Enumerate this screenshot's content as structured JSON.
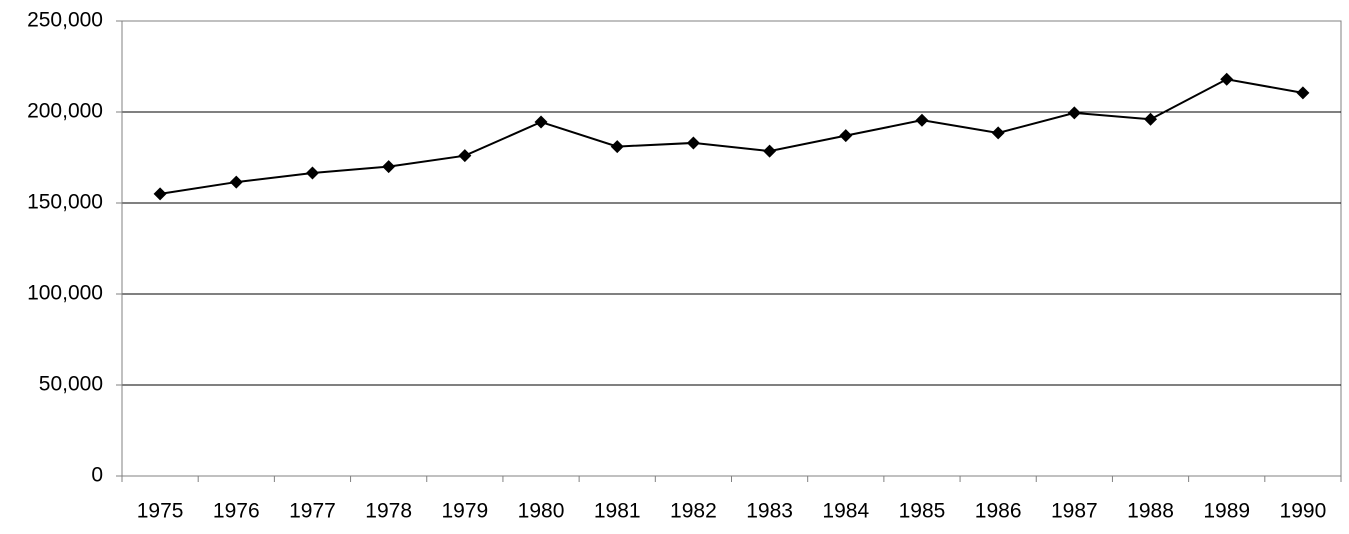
{
  "chart_data": {
    "type": "line",
    "categories": [
      "1975",
      "1976",
      "1977",
      "1978",
      "1979",
      "1980",
      "1981",
      "1982",
      "1983",
      "1984",
      "1985",
      "1986",
      "1987",
      "1988",
      "1989",
      "1990"
    ],
    "series": [
      {
        "color": "#000000",
        "values": [
          155000,
          161500,
          166500,
          170000,
          176000,
          194500,
          181000,
          183000,
          178500,
          187000,
          195500,
          188500,
          199500,
          196000,
          218000,
          210500
        ]
      }
    ],
    "ylim": [
      0,
      250000
    ],
    "yticks": [
      0,
      {
        "value": 50000,
        "label": "50,000"
      },
      {
        "value": 100000,
        "label": "100,000"
      },
      {
        "value": 150000,
        "label": "150,000"
      },
      {
        "value": 200000,
        "label": "200,000"
      },
      {
        "value": 250000,
        "label": "250,000"
      }
    ],
    "grid": true
  }
}
